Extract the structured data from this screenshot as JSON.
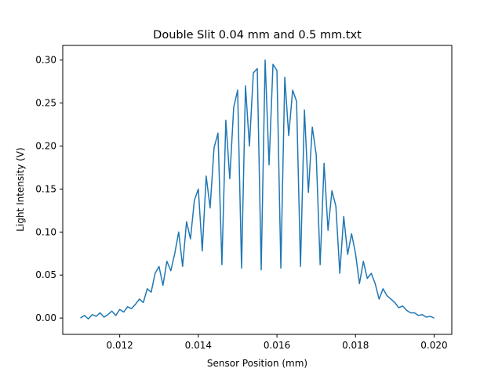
{
  "chart_data": {
    "type": "line",
    "title": "Double Slit 0.04 mm and 0.5 mm.txt",
    "xlabel": "Sensor Position (mm)",
    "ylabel": "Light Intensity (V)",
    "xlim": [
      0.01055,
      0.02045
    ],
    "ylim": [
      -0.019,
      0.317
    ],
    "xticks": [
      {
        "value": 0.012,
        "label": "0.012"
      },
      {
        "value": 0.014,
        "label": "0.014"
      },
      {
        "value": 0.016,
        "label": "0.016"
      },
      {
        "value": 0.018,
        "label": "0.018"
      },
      {
        "value": 0.02,
        "label": "0.020"
      }
    ],
    "yticks": [
      {
        "value": 0.0,
        "label": "0.00"
      },
      {
        "value": 0.05,
        "label": "0.05"
      },
      {
        "value": 0.1,
        "label": "0.10"
      },
      {
        "value": 0.15,
        "label": "0.15"
      },
      {
        "value": 0.2,
        "label": "0.20"
      },
      {
        "value": 0.25,
        "label": "0.25"
      },
      {
        "value": 0.3,
        "label": "0.30"
      }
    ],
    "grid": false,
    "legend": "none",
    "series": [
      {
        "color": "#1f77b4",
        "x": [
          0.011,
          0.0111,
          0.0112,
          0.0113,
          0.0114,
          0.0115,
          0.0116,
          0.0117,
          0.0118,
          0.0119,
          0.012,
          0.0121,
          0.0122,
          0.0123,
          0.0124,
          0.0125,
          0.0126,
          0.0127,
          0.0128,
          0.0129,
          0.013,
          0.0131,
          0.0132,
          0.0133,
          0.0134,
          0.0135,
          0.0136,
          0.0137,
          0.0138,
          0.0139,
          0.014,
          0.0141,
          0.0142,
          0.0143,
          0.0144,
          0.0145,
          0.0146,
          0.0147,
          0.0148,
          0.0149,
          0.015,
          0.0151,
          0.0152,
          0.0153,
          0.0154,
          0.0155,
          0.0156,
          0.0157,
          0.0158,
          0.0159,
          0.016,
          0.0161,
          0.0162,
          0.0163,
          0.0164,
          0.0165,
          0.0166,
          0.0167,
          0.0168,
          0.0169,
          0.017,
          0.0171,
          0.0172,
          0.0173,
          0.0174,
          0.0175,
          0.0176,
          0.0177,
          0.0178,
          0.0179,
          0.018,
          0.0181,
          0.0182,
          0.0183,
          0.0184,
          0.0185,
          0.0186,
          0.0187,
          0.0188,
          0.0189,
          0.019,
          0.0191,
          0.0192,
          0.0193,
          0.0194,
          0.0195,
          0.0196,
          0.0197,
          0.0198,
          0.0199,
          0.02
        ],
        "y": [
          0.0,
          0.003,
          -0.001,
          0.004,
          0.002,
          0.006,
          0.001,
          0.004,
          0.008,
          0.003,
          0.01,
          0.007,
          0.013,
          0.011,
          0.016,
          0.022,
          0.018,
          0.034,
          0.03,
          0.052,
          0.06,
          0.038,
          0.066,
          0.055,
          0.075,
          0.1,
          0.06,
          0.112,
          0.092,
          0.137,
          0.15,
          0.078,
          0.165,
          0.128,
          0.198,
          0.215,
          0.062,
          0.23,
          0.162,
          0.245,
          0.265,
          0.058,
          0.27,
          0.2,
          0.285,
          0.29,
          0.056,
          0.3,
          0.178,
          0.295,
          0.288,
          0.058,
          0.28,
          0.212,
          0.265,
          0.252,
          0.06,
          0.242,
          0.146,
          0.222,
          0.19,
          0.062,
          0.18,
          0.102,
          0.148,
          0.13,
          0.052,
          0.118,
          0.074,
          0.098,
          0.075,
          0.04,
          0.066,
          0.046,
          0.052,
          0.04,
          0.022,
          0.034,
          0.026,
          0.022,
          0.018,
          0.012,
          0.014,
          0.009,
          0.006,
          0.006,
          0.003,
          0.004,
          0.001,
          0.002,
          0.0
        ]
      }
    ]
  }
}
